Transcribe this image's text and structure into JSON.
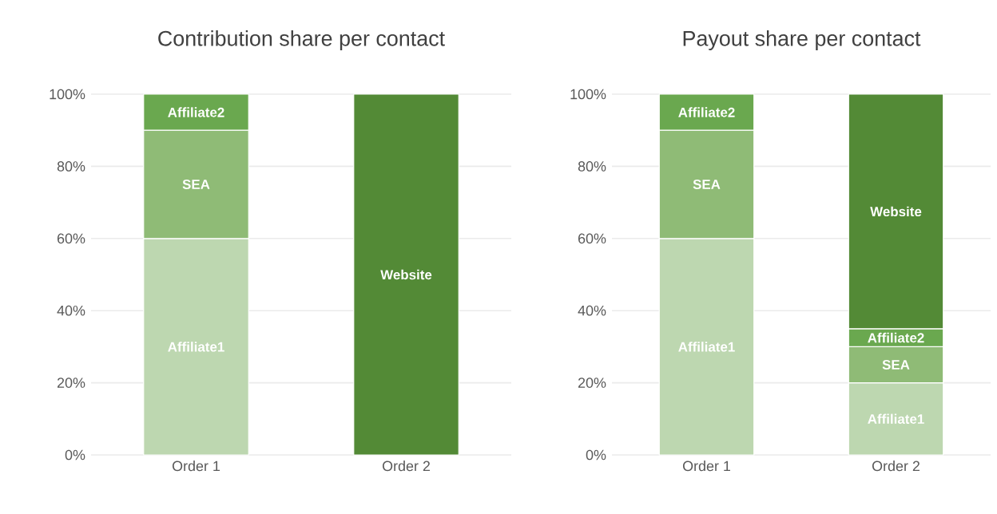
{
  "chart_data": [
    {
      "type": "bar",
      "title": "Contribution share per contact",
      "stacked": true,
      "categories": [
        "Order 1",
        "Order 2"
      ],
      "series": [
        {
          "name": "Affiliate1",
          "color": "#bdd7b0",
          "values": [
            60,
            null
          ]
        },
        {
          "name": "SEA",
          "color": "#8fbb76",
          "values": [
            30,
            null
          ]
        },
        {
          "name": "Affiliate2",
          "color": "#6aa84f",
          "values": [
            10,
            null
          ]
        },
        {
          "name": "Website",
          "color": "#538a36",
          "values": [
            null,
            100
          ]
        }
      ],
      "ylim": [
        0,
        100
      ],
      "yticks": [
        {
          "value": 0,
          "label": "0%"
        },
        {
          "value": 20,
          "label": "20%"
        },
        {
          "value": 40,
          "label": "40%"
        },
        {
          "value": 60,
          "label": "60%"
        },
        {
          "value": 80,
          "label": "80%"
        },
        {
          "value": 100,
          "label": "100%"
        }
      ],
      "grid": "y"
    },
    {
      "type": "bar",
      "title": "Payout share per contact",
      "stacked": true,
      "categories": [
        "Order 1",
        "Order 2"
      ],
      "series": [
        {
          "name": "Affiliate1",
          "color": "#bdd7b0",
          "values": [
            60,
            20
          ]
        },
        {
          "name": "SEA",
          "color": "#8fbb76",
          "values": [
            30,
            10
          ]
        },
        {
          "name": "Affiliate2",
          "color": "#6aa84f",
          "values": [
            10,
            5
          ]
        },
        {
          "name": "Website",
          "color": "#538a36",
          "values": [
            null,
            65
          ]
        }
      ],
      "ylim": [
        0,
        100
      ],
      "yticks": [
        {
          "value": 0,
          "label": "0%"
        },
        {
          "value": 20,
          "label": "20%"
        },
        {
          "value": 40,
          "label": "40%"
        },
        {
          "value": 60,
          "label": "60%"
        },
        {
          "value": 80,
          "label": "80%"
        },
        {
          "value": 100,
          "label": "100%"
        }
      ],
      "grid": "y"
    }
  ]
}
